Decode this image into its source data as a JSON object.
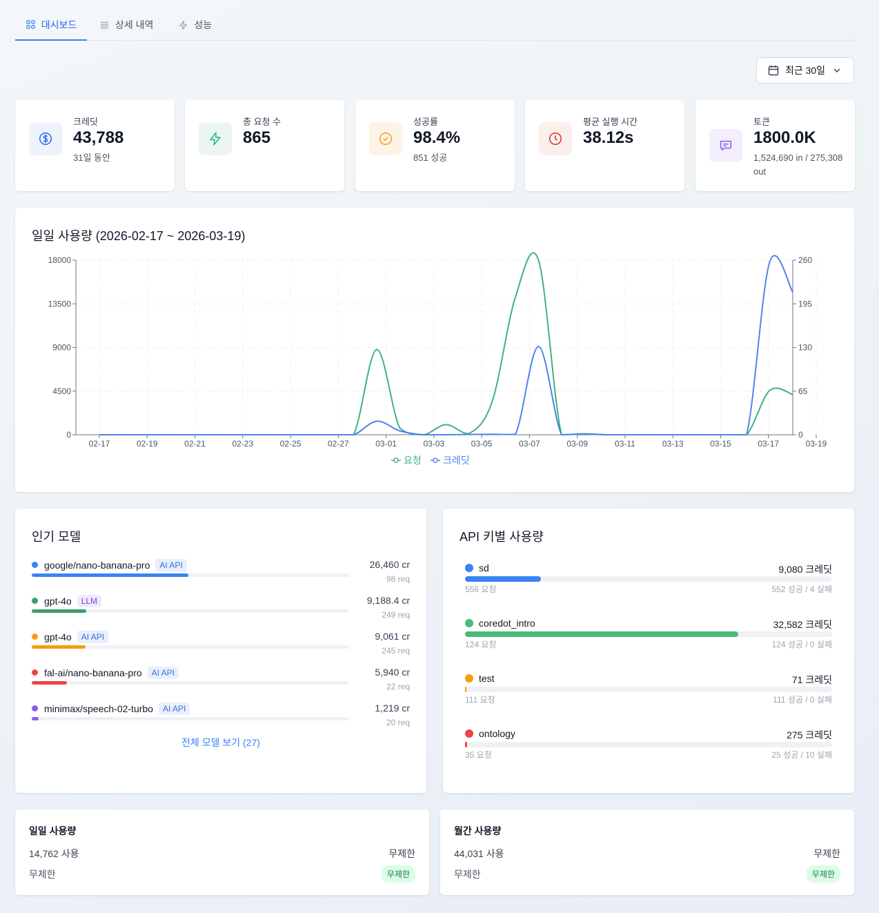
{
  "tabs": [
    {
      "label": "대시보드",
      "icon": "grid-icon",
      "active": true
    },
    {
      "label": "상세 내역",
      "icon": "list-icon"
    },
    {
      "label": "성능",
      "icon": "bolt-icon"
    }
  ],
  "date_range": {
    "label": "최근 30일",
    "icon": "calendar-icon"
  },
  "stats": [
    {
      "label": "크레딧",
      "value": "43,788",
      "sub": "31일 동안",
      "icon": "dollar-icon",
      "color": "#2563eb",
      "bg": "#eef3fb"
    },
    {
      "label": "총 요청 수",
      "value": "865",
      "sub": "",
      "icon": "bolt-icon",
      "color": "#10b981",
      "bg": "#edf5f2"
    },
    {
      "label": "성공률",
      "value": "98.4%",
      "sub": "851 성공",
      "icon": "check-circle-icon",
      "color": "#f59e0b",
      "bg": "#fdf3e7"
    },
    {
      "label": "평균 실행 시간",
      "value": "38.12s",
      "sub": "",
      "icon": "clock-icon",
      "color": "#dc2626",
      "bg": "#fbefec"
    },
    {
      "label": "토큰",
      "value": "1800.0K",
      "sub": "1,524,690 in / 275,308 out",
      "icon": "chat-icon",
      "color": "#8b5cf6",
      "bg": "#f4effc"
    }
  ],
  "daily_chart": {
    "title": "일일 사용량 (2026-02-17 ~ 2026-03-19)"
  },
  "chart_data": {
    "type": "line",
    "title": "일일 사용량 (2026-02-17 ~ 2026-03-19)",
    "x_ticks": [
      "02-17",
      "02-19",
      "02-21",
      "02-23",
      "02-25",
      "02-27",
      "03-01",
      "03-03",
      "03-05",
      "03-07",
      "03-09",
      "03-11",
      "03-13",
      "03-15",
      "03-17",
      "03-19"
    ],
    "x_count": 31,
    "y_left": {
      "min": 0,
      "max": 18000,
      "ticks": [
        0,
        4500,
        9000,
        13500,
        18000
      ]
    },
    "y_right": {
      "min": 0,
      "max": 260,
      "ticks": [
        0,
        65,
        130,
        195,
        260
      ]
    },
    "series": [
      {
        "name": "요청",
        "axis": "right",
        "color": "#3fb27f",
        "values": [
          0,
          0,
          0,
          0,
          0,
          0,
          0,
          0,
          0,
          0,
          0,
          0,
          127,
          10,
          0,
          15,
          2,
          50,
          205,
          260,
          0,
          1,
          0,
          0,
          0,
          0,
          0,
          0,
          0,
          66,
          60
        ]
      },
      {
        "name": "크레딧",
        "axis": "left",
        "color": "#4c84ee",
        "values": [
          0,
          0,
          0,
          0,
          0,
          0,
          0,
          0,
          0,
          0,
          0,
          0,
          1400,
          400,
          0,
          0,
          30,
          50,
          50,
          9100,
          0,
          100,
          0,
          0,
          0,
          0,
          0,
          0,
          0,
          17800,
          14700
        ]
      }
    ]
  },
  "popular_models": {
    "title": "인기 모델",
    "max_credits": 26460,
    "items": [
      {
        "name": "google/nano-banana-pro",
        "badge": "AI API",
        "badge_type": "api",
        "credits": "26,460 cr",
        "value": 26460,
        "requests": "98 req",
        "color": "#3b82f6"
      },
      {
        "name": "gpt-4o",
        "badge": "LLM",
        "badge_type": "llm",
        "credits": "9,188.4 cr",
        "value": 9188.4,
        "requests": "249 req",
        "color": "#3a9e6e"
      },
      {
        "name": "gpt-4o",
        "badge": "AI API",
        "badge_type": "api",
        "credits": "9,061 cr",
        "value": 9061,
        "requests": "245 req",
        "color": "#f59e0b"
      },
      {
        "name": "fal-ai/nano-banana-pro",
        "badge": "AI API",
        "badge_type": "api",
        "credits": "5,940 cr",
        "value": 5940,
        "requests": "22 req",
        "color": "#ef4444"
      },
      {
        "name": "minimax/speech-02-turbo",
        "badge": "AI API",
        "badge_type": "api",
        "credits": "1,219 cr",
        "value": 1219,
        "requests": "20 req",
        "color": "#8b5cf6"
      }
    ],
    "see_all": "전체 모델 보기 (27)"
  },
  "api_keys": {
    "title": "API 키별 사용량",
    "max_credits": 43788,
    "items": [
      {
        "name": "sd",
        "credits": "9,080 크레딧",
        "value": 9080,
        "requests": "556 요청",
        "result": "552 성공 / 4 실패",
        "color": "#3b82f6"
      },
      {
        "name": "coredot_intro",
        "credits": "32,582 크레딧",
        "value": 32582,
        "requests": "124 요청",
        "result": "124 성공 / 0 실패",
        "color": "#48bb78"
      },
      {
        "name": "test",
        "credits": "71 크레딧",
        "value": 71,
        "requests": "111 요청",
        "result": "111 성공 / 0 실패",
        "color": "#f59e0b"
      },
      {
        "name": "ontology",
        "credits": "275 크레딧",
        "value": 275,
        "requests": "35 요청",
        "result": "25 성공 / 10 실패",
        "color": "#ef4444"
      }
    ]
  },
  "usage_daily": {
    "title": "일일 사용량",
    "used": "14,762 사용",
    "limit": "무제한",
    "remaining": "무제한",
    "badge": "무제한"
  },
  "usage_monthly": {
    "title": "월간 사용량",
    "used": "44,031 사용",
    "limit": "무제한",
    "remaining": "무제한",
    "badge": "무제한"
  }
}
